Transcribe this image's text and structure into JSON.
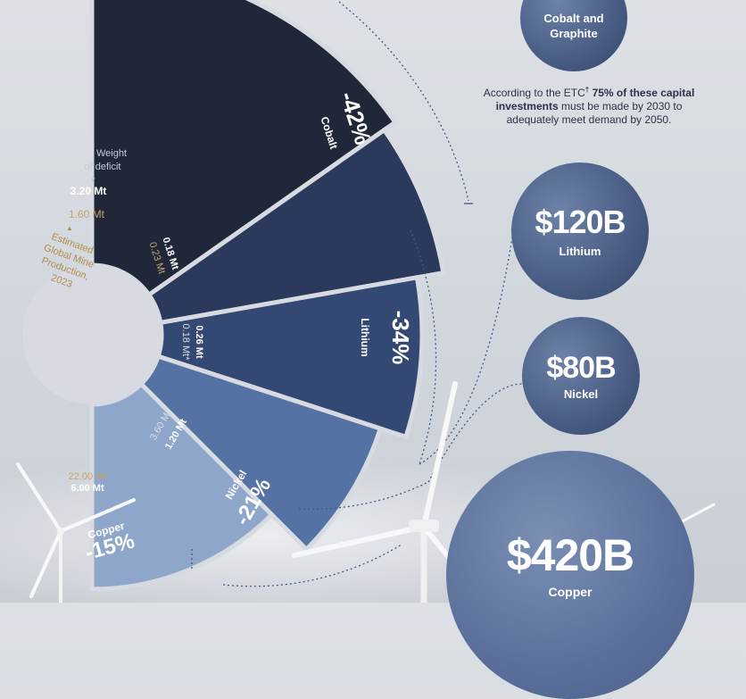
{
  "radial": {
    "center_label": [
      "Estimated",
      "Global Mine",
      "Production,",
      "2023"
    ],
    "weight_legend": [
      "Weight",
      "of deficit"
    ],
    "top_deficit": "3.20 Mt",
    "top_production": "1.60 Mt",
    "segments": [
      {
        "name": "Cobalt",
        "pct": "-42%",
        "deficit": "0.18 Mt",
        "production": "0.23 Mt",
        "color": "#2b3a5c"
      },
      {
        "name": "Lithium",
        "pct": "-34%",
        "deficit": "0.26 Mt",
        "production": "0.18 Mt*",
        "color": "#344874"
      },
      {
        "name": "Nickel",
        "pct": "-21%",
        "deficit": "1.20 Mt",
        "production": "3.60 Mt",
        "color": "#5472a4"
      },
      {
        "name": "Copper",
        "pct": "-15%",
        "deficit": "6.00 Mt",
        "production": "22.00 Mt",
        "color": "#8ea6c9"
      }
    ],
    "colors": {
      "graphite": "#1f2738",
      "deficit_text": "#ffffff",
      "production_text": "#c4a46b"
    }
  },
  "investments": {
    "top_partial_label": "Cobalt and Graphite",
    "note_lead": "According to the ETC",
    "note_dagger": "†",
    "note_bold": "75% of these capital investments",
    "note_tail": "must be made by 2030 to adequately meet demand by 2050.",
    "bubbles": [
      {
        "amount": "$120B",
        "label": "Lithium"
      },
      {
        "amount": "$80B",
        "label": "Nickel"
      },
      {
        "amount": "$420B",
        "label": "Copper"
      }
    ]
  }
}
